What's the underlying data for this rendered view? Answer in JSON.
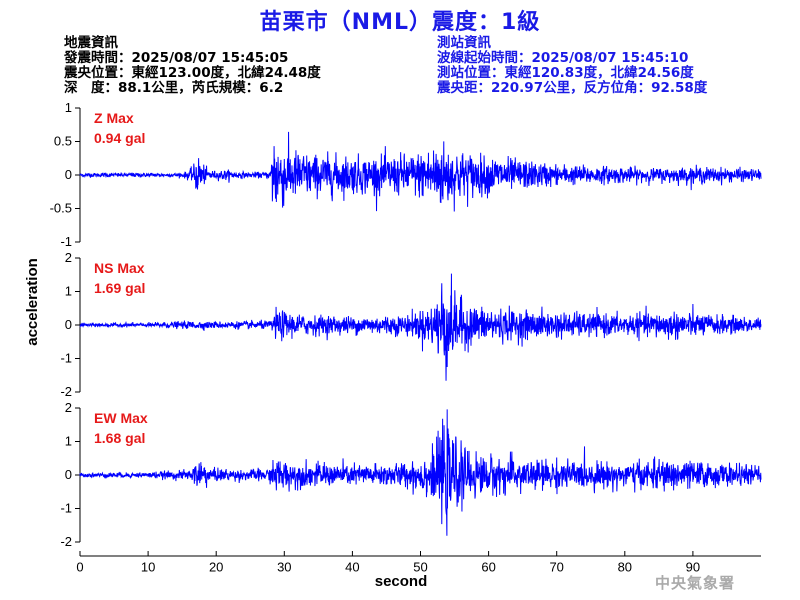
{
  "title": "苗栗市（NML）震度：1級",
  "quake_info": {
    "heading": "地震資訊",
    "time": "發震時間：2025/08/07 15:45:05",
    "location": "震央位置：東經123.00度，北緯24.48度",
    "depth_magnitude": "深　度：88.1公里，芮氏規模：6.2"
  },
  "station_info": {
    "heading": "測站資訊",
    "wave_start": "波線起始時間：2025/08/07 15:45:10",
    "location": "測站位置：東經120.83度，北緯24.56度",
    "distance": "震央距：220.97公里，反方位角：92.58度"
  },
  "agency": "中央氣象署",
  "colors": {
    "trace": "#0000ff",
    "max_label": "#e61919",
    "title": "#1a1ae6"
  },
  "chart_data": {
    "type": "line",
    "xlabel": "second",
    "ylabel": "acceleration",
    "xlim": [
      0,
      100
    ],
    "x_ticks": [
      0,
      10,
      20,
      30,
      40,
      50,
      60,
      70,
      80,
      90
    ],
    "panels": [
      {
        "name": "Z",
        "max_label": "Z Max",
        "max_value": "0.94 gal",
        "ylim": [
          -1,
          1
        ],
        "y_ticks": [
          -1,
          -0.5,
          0,
          0.5,
          1
        ],
        "y_tick_labels": [
          "-1",
          "-0.5",
          "0",
          "0.5",
          "1"
        ],
        "envelope": {
          "t": [
            0,
            15,
            16.5,
            17.3,
            18.5,
            20,
            21,
            23,
            25,
            28,
            28.4,
            29,
            31,
            34,
            38,
            42,
            46,
            49,
            51,
            53,
            55,
            58,
            62,
            66,
            70,
            75,
            80,
            85,
            90,
            95,
            100
          ],
          "amp": [
            0.03,
            0.03,
            0.1,
            0.3,
            0.1,
            0.05,
            0.08,
            0.05,
            0.04,
            0.05,
            0.8,
            0.5,
            0.38,
            0.3,
            0.28,
            0.26,
            0.28,
            0.3,
            0.4,
            0.5,
            0.38,
            0.3,
            0.25,
            0.2,
            0.15,
            0.13,
            0.11,
            0.1,
            0.12,
            0.1,
            0.08
          ]
        }
      },
      {
        "name": "NS",
        "max_label": "NS Max",
        "max_value": "1.69 gal",
        "ylim": [
          -2,
          2
        ],
        "y_ticks": [
          -2,
          -1,
          0,
          1,
          2
        ],
        "y_tick_labels": [
          "-2",
          "-1",
          "0",
          "1",
          "2"
        ],
        "envelope": {
          "t": [
            0,
            10,
            17,
            20,
            28,
            28.5,
            32,
            40,
            48,
            52,
            53.5,
            55,
            57,
            60,
            66,
            72,
            80,
            88,
            92,
            100
          ],
          "amp": [
            0.05,
            0.06,
            0.12,
            0.1,
            0.12,
            0.45,
            0.3,
            0.25,
            0.3,
            0.6,
            1.6,
            0.9,
            0.6,
            0.5,
            0.4,
            0.35,
            0.3,
            0.4,
            0.3,
            0.2
          ]
        }
      },
      {
        "name": "EW",
        "max_label": "EW Max",
        "max_value": "1.68 gal",
        "ylim": [
          -2,
          2
        ],
        "y_ticks": [
          -2,
          -1,
          0,
          1,
          2
        ],
        "y_tick_labels": [
          "-2",
          "-1",
          "0",
          "1",
          "2"
        ],
        "envelope": {
          "t": [
            0,
            10,
            16.5,
            17.5,
            19,
            24,
            28,
            28.5,
            32,
            40,
            48,
            52,
            53.5,
            55,
            57,
            60,
            66,
            72,
            80,
            88,
            92,
            100
          ],
          "amp": [
            0.06,
            0.08,
            0.15,
            0.6,
            0.2,
            0.15,
            0.2,
            0.5,
            0.35,
            0.3,
            0.35,
            0.7,
            1.6,
            1.0,
            0.7,
            0.55,
            0.45,
            0.4,
            0.35,
            0.45,
            0.35,
            0.25
          ]
        }
      }
    ]
  }
}
